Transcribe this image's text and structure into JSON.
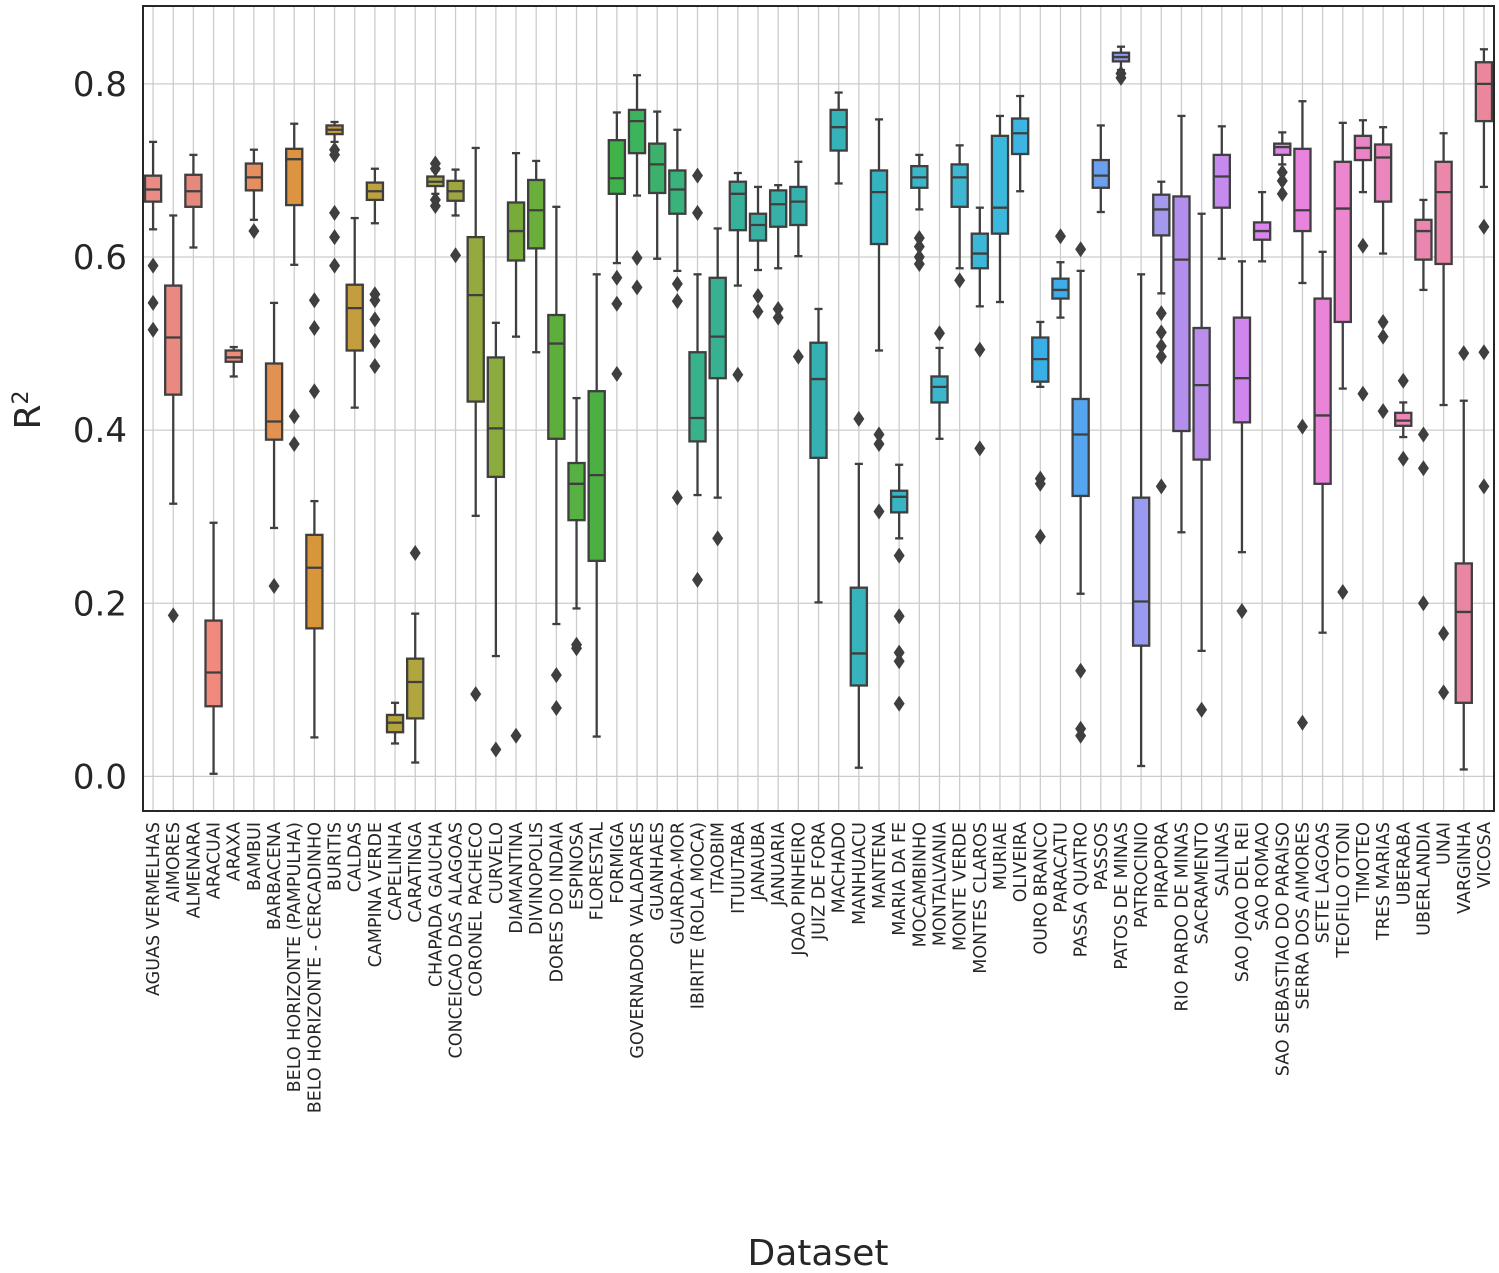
{
  "chart_data": {
    "type": "box",
    "title": "",
    "xlabel": "Dataset",
    "ylabel": "R",
    "ylabel_superscript": "2",
    "ylim": [
      -0.04,
      0.89
    ],
    "yticks": [
      "0.0",
      "0.2",
      "0.4",
      "0.6",
      "0.8"
    ],
    "ytick_values": [
      0.0,
      0.2,
      0.4,
      0.6,
      0.8
    ],
    "grid": true,
    "categories": [
      "AGUAS VERMELHAS",
      "AIMORES",
      "ALMENARA",
      "ARACUAI",
      "ARAXA",
      "BAMBUI",
      "BARBACENA",
      "BELO HORIZONTE (PAMPULHA)",
      "BELO HORIZONTE - CERCADINHO",
      "BURITIS",
      "CALDAS",
      "CAMPINA VERDE",
      "CAPELINHA",
      "CARATINGA",
      "CHAPADA GAUCHA",
      "CONCEICAO DAS ALAGOAS",
      "CORONEL PACHECO",
      "CURVELO",
      "DIAMANTINA",
      "DIVINOPOLIS",
      "DORES DO INDAIA",
      "ESPINOSA",
      "FLORESTAL",
      "FORMIGA",
      "GOVERNADOR VALADARES",
      "GUANHAES",
      "GUARDA-MOR",
      "IBIRITE (ROLA MOCA)",
      "ITAOBIM",
      "ITUIUTABA",
      "JANAUBA",
      "JANUARIA",
      "JOAO PINHEIRO",
      "JUIZ DE FORA",
      "MACHADO",
      "MANHUACU",
      "MANTENA",
      "MARIA DA FE",
      "MOCAMBINHO",
      "MONTALVANIA",
      "MONTE VERDE",
      "MONTES CLAROS",
      "MURIAE",
      "OLIVEIRA",
      "OURO BRANCO",
      "PARACATU",
      "PASSA QUATRO",
      "PASSOS",
      "PATOS DE MINAS",
      "PATROCINIO",
      "PIRAPORA",
      "RIO PARDO DE MINAS",
      "SACRAMENTO",
      "SALINAS",
      "SAO JOAO DEL REI",
      "SAO ROMAO",
      "SAO SEBASTIAO DO PARAISO",
      "SERRA DOS AIMORES",
      "SETE LAGOAS",
      "TEOFILO OTONI",
      "TIMOTEO",
      "TRES MARIAS",
      "UBERABA",
      "UBERLANDIA",
      "UNAI",
      "VARGINHA",
      "VICOSA"
    ],
    "colors": [
      "#ea8b86",
      "#e98981",
      "#e4897c",
      "#ef8a7c",
      "#ef8c78",
      "#e68e60",
      "#e39150",
      "#dc9440",
      "#d7963a",
      "#c99a39",
      "#c49d3f",
      "#bfa23e",
      "#b3a43b",
      "#b0a63d",
      "#a8a745",
      "#9fa63f",
      "#94aa3e",
      "#8bab3e",
      "#78ab3a",
      "#6aae3b",
      "#5eae3c",
      "#56b042",
      "#4caf44",
      "#3fb24a",
      "#3cb45e",
      "#3bb16b",
      "#39b37b",
      "#38b28a",
      "#38b192",
      "#38b19a",
      "#38afa2",
      "#37b0a8",
      "#37b1ad",
      "#36b1b3",
      "#36b3b8",
      "#36b3bd",
      "#36b3c1",
      "#38b4c4",
      "#39b6c8",
      "#3cb6cd",
      "#3eb7d2",
      "#3db7d7",
      "#3bb9dd",
      "#3db4e2",
      "#3aaee6",
      "#3daeea",
      "#55a6ee",
      "#6aa0ee",
      "#8f9aee",
      "#9a9af0",
      "#a39aee",
      "#b38eec",
      "#bb8eee",
      "#c68aee",
      "#cf86ef",
      "#d985ed",
      "#e184e7",
      "#e884de",
      "#ea84d8",
      "#eb86cf",
      "#e984c6",
      "#ea86bd",
      "#ea87b6",
      "#ea86b0",
      "#ea87aa",
      "#e987a3",
      "#ea879c"
    ],
    "series": [
      {
        "name": "AGUAS VERMELHAS",
        "q1": 0.664,
        "median": 0.678,
        "q3": 0.694,
        "whislo": 0.632,
        "whishi": 0.733,
        "fliers": [
          0.59,
          0.547,
          0.516
        ]
      },
      {
        "name": "AIMORES",
        "q1": 0.441,
        "median": 0.507,
        "q3": 0.567,
        "whislo": 0.315,
        "whishi": 0.648,
        "fliers": [
          0.186
        ]
      },
      {
        "name": "ALMENARA",
        "q1": 0.658,
        "median": 0.676,
        "q3": 0.695,
        "whislo": 0.611,
        "whishi": 0.718,
        "fliers": []
      },
      {
        "name": "ARACUAI",
        "q1": 0.081,
        "median": 0.12,
        "q3": 0.18,
        "whislo": 0.003,
        "whishi": 0.293,
        "fliers": []
      },
      {
        "name": "ARAXA",
        "q1": 0.479,
        "median": 0.484,
        "q3": 0.492,
        "whislo": 0.462,
        "whishi": 0.496,
        "fliers": []
      },
      {
        "name": "BAMBUI",
        "q1": 0.677,
        "median": 0.692,
        "q3": 0.708,
        "whislo": 0.643,
        "whishi": 0.724,
        "fliers": [
          0.63
        ]
      },
      {
        "name": "BARBACENA",
        "q1": 0.389,
        "median": 0.41,
        "q3": 0.477,
        "whislo": 0.287,
        "whishi": 0.547,
        "fliers": [
          0.22
        ]
      },
      {
        "name": "BELO HORIZONTE (PAMPULHA)",
        "q1": 0.66,
        "median": 0.713,
        "q3": 0.725,
        "whislo": 0.591,
        "whishi": 0.754,
        "fliers": [
          0.416,
          0.384
        ]
      },
      {
        "name": "BELO HORIZONTE - CERCADINHO",
        "q1": 0.171,
        "median": 0.241,
        "q3": 0.279,
        "whislo": 0.045,
        "whishi": 0.318,
        "fliers": [
          0.55,
          0.518,
          0.445
        ]
      },
      {
        "name": "BURITIS",
        "q1": 0.742,
        "median": 0.747,
        "q3": 0.752,
        "whislo": 0.733,
        "whishi": 0.756,
        "fliers": [
          0.724,
          0.718,
          0.651,
          0.623,
          0.59
        ]
      },
      {
        "name": "CALDAS",
        "q1": 0.492,
        "median": 0.541,
        "q3": 0.568,
        "whislo": 0.426,
        "whishi": 0.645,
        "fliers": []
      },
      {
        "name": "CAMPINA VERDE",
        "q1": 0.666,
        "median": 0.676,
        "q3": 0.686,
        "whislo": 0.639,
        "whishi": 0.702,
        "fliers": [
          0.557,
          0.55,
          0.528,
          0.503,
          0.474
        ]
      },
      {
        "name": "CAPELINHA",
        "q1": 0.051,
        "median": 0.062,
        "q3": 0.071,
        "whislo": 0.038,
        "whishi": 0.085,
        "fliers": []
      },
      {
        "name": "CARATINGA",
        "q1": 0.067,
        "median": 0.109,
        "q3": 0.136,
        "whislo": 0.016,
        "whishi": 0.188,
        "fliers": [
          0.258
        ]
      },
      {
        "name": "CHAPADA GAUCHA",
        "q1": 0.682,
        "median": 0.687,
        "q3": 0.693,
        "whislo": 0.673,
        "whishi": 0.7,
        "fliers": [
          0.708,
          0.702,
          0.666,
          0.659
        ]
      },
      {
        "name": "CONCEICAO DAS ALAGOAS",
        "q1": 0.665,
        "median": 0.676,
        "q3": 0.688,
        "whislo": 0.648,
        "whishi": 0.701,
        "fliers": [
          0.602
        ]
      },
      {
        "name": "CORONEL PACHECO",
        "q1": 0.433,
        "median": 0.556,
        "q3": 0.623,
        "whislo": 0.301,
        "whishi": 0.726,
        "fliers": [
          0.095
        ]
      },
      {
        "name": "CURVELO",
        "q1": 0.346,
        "median": 0.402,
        "q3": 0.484,
        "whislo": 0.139,
        "whishi": 0.524,
        "fliers": [
          0.031
        ]
      },
      {
        "name": "DIAMANTINA",
        "q1": 0.596,
        "median": 0.63,
        "q3": 0.663,
        "whislo": 0.508,
        "whishi": 0.72,
        "fliers": [
          0.047
        ]
      },
      {
        "name": "DIVINOPOLIS",
        "q1": 0.61,
        "median": 0.654,
        "q3": 0.689,
        "whislo": 0.49,
        "whishi": 0.711,
        "fliers": []
      },
      {
        "name": "DORES DO INDAIA",
        "q1": 0.39,
        "median": 0.5,
        "q3": 0.533,
        "whislo": 0.176,
        "whishi": 0.658,
        "fliers": [
          0.117,
          0.079
        ]
      },
      {
        "name": "ESPINOSA",
        "q1": 0.296,
        "median": 0.338,
        "q3": 0.362,
        "whislo": 0.194,
        "whishi": 0.437,
        "fliers": [
          0.152,
          0.148
        ]
      },
      {
        "name": "FLORESTAL",
        "q1": 0.249,
        "median": 0.348,
        "q3": 0.445,
        "whislo": 0.046,
        "whishi": 0.58,
        "fliers": []
      },
      {
        "name": "FORMIGA",
        "q1": 0.673,
        "median": 0.691,
        "q3": 0.735,
        "whislo": 0.593,
        "whishi": 0.767,
        "fliers": [
          0.576,
          0.546,
          0.465
        ]
      },
      {
        "name": "GOVERNADOR VALADARES",
        "q1": 0.72,
        "median": 0.757,
        "q3": 0.77,
        "whislo": 0.671,
        "whishi": 0.81,
        "fliers": [
          0.599,
          0.565
        ]
      },
      {
        "name": "GUANHAES",
        "q1": 0.674,
        "median": 0.707,
        "q3": 0.731,
        "whislo": 0.598,
        "whishi": 0.768,
        "fliers": []
      },
      {
        "name": "GUARDA-MOR",
        "q1": 0.65,
        "median": 0.678,
        "q3": 0.7,
        "whislo": 0.584,
        "whishi": 0.747,
        "fliers": [
          0.569,
          0.549,
          0.322
        ]
      },
      {
        "name": "IBIRITE (ROLA MOCA)",
        "q1": 0.387,
        "median": 0.414,
        "q3": 0.49,
        "whislo": 0.325,
        "whishi": 0.58,
        "fliers": [
          0.694,
          0.651,
          0.227
        ]
      },
      {
        "name": "ITAOBIM",
        "q1": 0.46,
        "median": 0.508,
        "q3": 0.576,
        "whislo": 0.322,
        "whishi": 0.633,
        "fliers": [
          0.275
        ]
      },
      {
        "name": "ITUIUTABA",
        "q1": 0.631,
        "median": 0.673,
        "q3": 0.687,
        "whislo": 0.567,
        "whishi": 0.697,
        "fliers": [
          0.464
        ]
      },
      {
        "name": "JANAUBA",
        "q1": 0.619,
        "median": 0.637,
        "q3": 0.65,
        "whislo": 0.585,
        "whishi": 0.681,
        "fliers": [
          0.555,
          0.537
        ]
      },
      {
        "name": "JANUARIA",
        "q1": 0.635,
        "median": 0.661,
        "q3": 0.677,
        "whislo": 0.587,
        "whishi": 0.683,
        "fliers": [
          0.54,
          0.53
        ]
      },
      {
        "name": "JOAO PINHEIRO",
        "q1": 0.637,
        "median": 0.664,
        "q3": 0.681,
        "whislo": 0.601,
        "whishi": 0.71,
        "fliers": [
          0.485
        ]
      },
      {
        "name": "JUIZ DE FORA",
        "q1": 0.368,
        "median": 0.459,
        "q3": 0.501,
        "whislo": 0.201,
        "whishi": 0.54,
        "fliers": []
      },
      {
        "name": "MACHADO",
        "q1": 0.723,
        "median": 0.75,
        "q3": 0.77,
        "whislo": 0.685,
        "whishi": 0.79,
        "fliers": []
      },
      {
        "name": "MANHUACU",
        "q1": 0.105,
        "median": 0.142,
        "q3": 0.218,
        "whislo": 0.01,
        "whishi": 0.361,
        "fliers": [
          0.413
        ]
      },
      {
        "name": "MANTENA",
        "q1": 0.615,
        "median": 0.675,
        "q3": 0.7,
        "whislo": 0.492,
        "whishi": 0.759,
        "fliers": [
          0.395,
          0.384,
          0.306
        ]
      },
      {
        "name": "MARIA DA FE",
        "q1": 0.305,
        "median": 0.323,
        "q3": 0.33,
        "whislo": 0.275,
        "whishi": 0.36,
        "fliers": [
          0.255,
          0.185,
          0.143,
          0.133,
          0.084
        ]
      },
      {
        "name": "MOCAMBINHO",
        "q1": 0.68,
        "median": 0.692,
        "q3": 0.705,
        "whislo": 0.655,
        "whishi": 0.718,
        "fliers": [
          0.622,
          0.612,
          0.6,
          0.592
        ]
      },
      {
        "name": "MONTALVANIA",
        "q1": 0.432,
        "median": 0.45,
        "q3": 0.462,
        "whislo": 0.39,
        "whishi": 0.495,
        "fliers": [
          0.512
        ]
      },
      {
        "name": "MONTE VERDE",
        "q1": 0.658,
        "median": 0.692,
        "q3": 0.707,
        "whislo": 0.587,
        "whishi": 0.729,
        "fliers": [
          0.573
        ]
      },
      {
        "name": "MONTES CLAROS",
        "q1": 0.587,
        "median": 0.604,
        "q3": 0.627,
        "whislo": 0.543,
        "whishi": 0.657,
        "fliers": [
          0.493,
          0.379
        ]
      },
      {
        "name": "MURIAE",
        "q1": 0.627,
        "median": 0.657,
        "q3": 0.74,
        "whislo": 0.548,
        "whishi": 0.763,
        "fliers": []
      },
      {
        "name": "OLIVEIRA",
        "q1": 0.719,
        "median": 0.743,
        "q3": 0.76,
        "whislo": 0.676,
        "whishi": 0.786,
        "fliers": []
      },
      {
        "name": "OURO BRANCO",
        "q1": 0.456,
        "median": 0.482,
        "q3": 0.507,
        "whislo": 0.45,
        "whishi": 0.525,
        "fliers": [
          0.344,
          0.338,
          0.277
        ]
      },
      {
        "name": "PARACATU",
        "q1": 0.552,
        "median": 0.562,
        "q3": 0.575,
        "whislo": 0.53,
        "whishi": 0.594,
        "fliers": [
          0.624
        ]
      },
      {
        "name": "PASSA QUATRO",
        "q1": 0.324,
        "median": 0.395,
        "q3": 0.436,
        "whislo": 0.211,
        "whishi": 0.584,
        "fliers": [
          0.609,
          0.122,
          0.055,
          0.047
        ]
      },
      {
        "name": "PASSOS",
        "q1": 0.68,
        "median": 0.694,
        "q3": 0.712,
        "whislo": 0.652,
        "whishi": 0.752,
        "fliers": []
      },
      {
        "name": "PATOS DE MINAS",
        "q1": 0.826,
        "median": 0.831,
        "q3": 0.836,
        "whislo": 0.816,
        "whishi": 0.843,
        "fliers": [
          0.812,
          0.807
        ]
      },
      {
        "name": "PATROCINIO",
        "q1": 0.151,
        "median": 0.202,
        "q3": 0.322,
        "whislo": 0.012,
        "whishi": 0.58,
        "fliers": []
      },
      {
        "name": "PIRAPORA",
        "q1": 0.625,
        "median": 0.655,
        "q3": 0.672,
        "whislo": 0.558,
        "whishi": 0.687,
        "fliers": [
          0.535,
          0.513,
          0.497,
          0.485,
          0.335
        ]
      },
      {
        "name": "RIO PARDO DE MINAS",
        "q1": 0.399,
        "median": 0.597,
        "q3": 0.67,
        "whislo": 0.282,
        "whishi": 0.763,
        "fliers": []
      },
      {
        "name": "SACRAMENTO",
        "q1": 0.366,
        "median": 0.452,
        "q3": 0.518,
        "whislo": 0.145,
        "whishi": 0.65,
        "fliers": [
          0.077
        ]
      },
      {
        "name": "SALINAS",
        "q1": 0.657,
        "median": 0.693,
        "q3": 0.718,
        "whislo": 0.598,
        "whishi": 0.751,
        "fliers": []
      },
      {
        "name": "SAO JOAO DEL REI",
        "q1": 0.409,
        "median": 0.46,
        "q3": 0.53,
        "whislo": 0.259,
        "whishi": 0.595,
        "fliers": [
          0.191
        ]
      },
      {
        "name": "SAO ROMAO",
        "q1": 0.62,
        "median": 0.63,
        "q3": 0.64,
        "whislo": 0.595,
        "whishi": 0.675,
        "fliers": []
      },
      {
        "name": "SAO SEBASTIAO DO PARAISO",
        "q1": 0.718,
        "median": 0.727,
        "q3": 0.731,
        "whislo": 0.707,
        "whishi": 0.744,
        "fliers": [
          0.698,
          0.688,
          0.673
        ]
      },
      {
        "name": "SERRA DOS AIMORES",
        "q1": 0.63,
        "median": 0.654,
        "q3": 0.725,
        "whislo": 0.57,
        "whishi": 0.78,
        "fliers": [
          0.404,
          0.062
        ]
      },
      {
        "name": "SETE LAGOAS",
        "q1": 0.338,
        "median": 0.417,
        "q3": 0.552,
        "whislo": 0.166,
        "whishi": 0.606,
        "fliers": []
      },
      {
        "name": "TEOFILO OTONI",
        "q1": 0.525,
        "median": 0.656,
        "q3": 0.71,
        "whislo": 0.448,
        "whishi": 0.755,
        "fliers": [
          0.213
        ]
      },
      {
        "name": "TIMOTEO",
        "q1": 0.712,
        "median": 0.726,
        "q3": 0.74,
        "whislo": 0.675,
        "whishi": 0.758,
        "fliers": [
          0.613,
          0.442
        ]
      },
      {
        "name": "TRES MARIAS",
        "q1": 0.664,
        "median": 0.715,
        "q3": 0.73,
        "whislo": 0.604,
        "whishi": 0.75,
        "fliers": [
          0.525,
          0.508,
          0.422
        ]
      },
      {
        "name": "UBERABA",
        "q1": 0.405,
        "median": 0.411,
        "q3": 0.42,
        "whislo": 0.392,
        "whishi": 0.432,
        "fliers": [
          0.457,
          0.367
        ]
      },
      {
        "name": "UBERLANDIA",
        "q1": 0.597,
        "median": 0.63,
        "q3": 0.643,
        "whislo": 0.562,
        "whishi": 0.666,
        "fliers": [
          0.395,
          0.356,
          0.2
        ]
      },
      {
        "name": "UNAI",
        "q1": 0.592,
        "median": 0.675,
        "q3": 0.71,
        "whislo": 0.429,
        "whishi": 0.743,
        "fliers": [
          0.165,
          0.097
        ]
      },
      {
        "name": "VARGINHA",
        "q1": 0.085,
        "median": 0.19,
        "q3": 0.246,
        "whislo": 0.008,
        "whishi": 0.434,
        "fliers": [
          0.489
        ]
      },
      {
        "name": "VICOSA",
        "q1": 0.757,
        "median": 0.8,
        "q3": 0.825,
        "whislo": 0.681,
        "whishi": 0.84,
        "fliers": [
          0.635,
          0.49,
          0.335
        ]
      }
    ]
  }
}
